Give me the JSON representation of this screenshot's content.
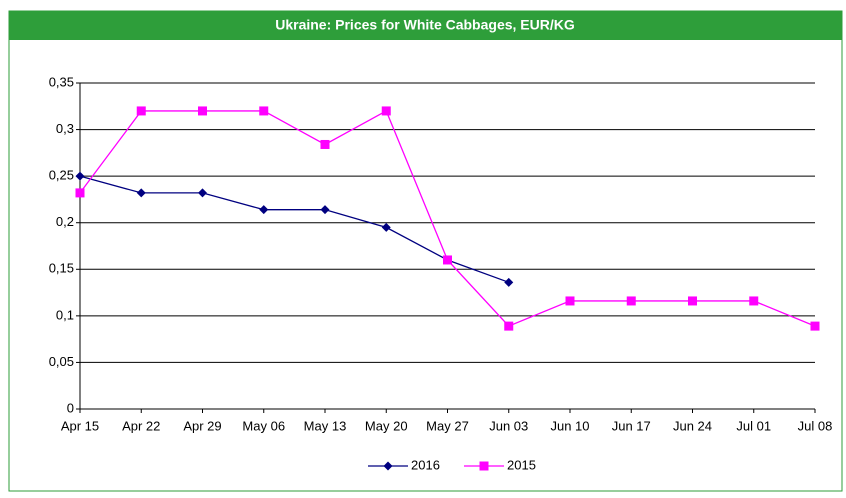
{
  "chart_data": {
    "type": "line",
    "title": "Ukraine: Prices for White Cabbages, EUR/KG",
    "categories": [
      "Apr 15",
      "Apr 22",
      "Apr 29",
      "May 06",
      "May 13",
      "May 20",
      "May 27",
      "Jun 03",
      "Jun 10",
      "Jun 17",
      "Jun 24",
      "Jul 01",
      "Jul 08"
    ],
    "series": [
      {
        "name": "2016",
        "color": "#000080",
        "marker": "diamond",
        "values": [
          0.25,
          0.232,
          0.232,
          0.214,
          0.214,
          0.195,
          0.16,
          0.136,
          null,
          null,
          null,
          null,
          null
        ]
      },
      {
        "name": "2015",
        "color": "#ff00ff",
        "marker": "square",
        "values": [
          0.232,
          0.32,
          0.32,
          0.32,
          0.284,
          0.32,
          0.16,
          0.089,
          0.116,
          0.116,
          0.116,
          0.116,
          0.089
        ]
      }
    ],
    "ylim": [
      0,
      0.35
    ],
    "yticks": [
      0,
      {
        "value": 0.05,
        "label": "0,05"
      },
      {
        "value": 0.1,
        "label": "0,1"
      },
      {
        "value": 0.15,
        "label": "0,15"
      },
      {
        "value": 0.2,
        "label": "0,2"
      },
      {
        "value": 0.25,
        "label": "0,25"
      },
      {
        "value": 0.3,
        "label": "0,3"
      },
      {
        "value": 0.35,
        "label": "0,35"
      }
    ],
    "grid": true,
    "legend": "bottom"
  }
}
